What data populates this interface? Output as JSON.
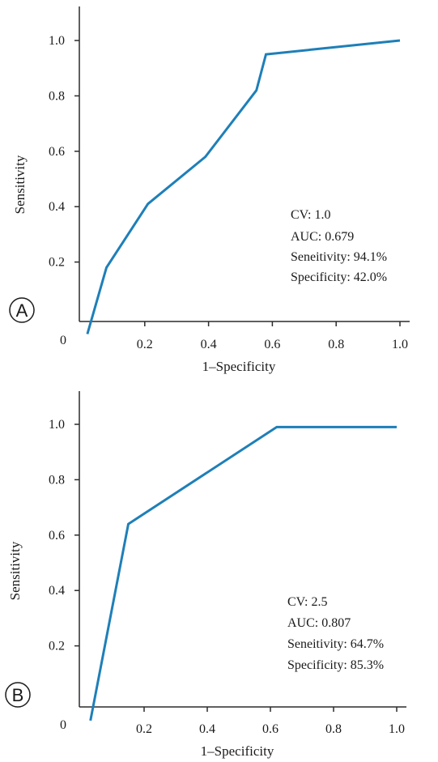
{
  "chart_data": [
    {
      "panel": "A",
      "type": "line",
      "xlabel": "1–Specificity",
      "ylabel": "Sensitivity",
      "origin_label": "0",
      "xlim": [
        0,
        1.0
      ],
      "ylim": [
        0,
        1.1
      ],
      "x_ticks": [
        "0.2",
        "0.4",
        "0.6",
        "0.8",
        "1.0"
      ],
      "x_tick_values": [
        0.2,
        0.4,
        0.6,
        0.8,
        1.0
      ],
      "y_ticks": [
        "0.2",
        "0.4",
        "0.6",
        "0.8",
        "1.0"
      ],
      "y_tick_values": [
        0.2,
        0.4,
        0.6,
        0.8,
        1.0
      ],
      "x": [
        0.02,
        0.08,
        0.21,
        0.39,
        0.55,
        0.58,
        1.0
      ],
      "y": [
        -0.06,
        0.18,
        0.41,
        0.58,
        0.82,
        0.95,
        1.0
      ],
      "annotations": [
        "CV: 1.0",
        "AUC: 0.679",
        "Seneitivity: 94.1%",
        "Specificity: 42.0%"
      ],
      "grid": false
    },
    {
      "panel": "B",
      "type": "line",
      "xlabel": "1–Specificity",
      "ylabel": "Sensitivity",
      "origin_label": "0",
      "xlim": [
        0,
        1.0
      ],
      "ylim": [
        0,
        1.1
      ],
      "x_ticks": [
        "0.2",
        "0.4",
        "0.6",
        "0.8",
        "1.0"
      ],
      "x_tick_values": [
        0.2,
        0.4,
        0.6,
        0.8,
        1.0
      ],
      "y_ticks": [
        "0.2",
        "0.4",
        "0.6",
        "0.8",
        "1.0"
      ],
      "y_tick_values": [
        0.2,
        0.4,
        0.6,
        0.8,
        1.0
      ],
      "x": [
        0.03,
        0.15,
        0.62,
        1.0
      ],
      "y": [
        -0.07,
        0.64,
        0.99,
        0.99
      ],
      "annotations": [
        "CV: 2.5",
        "AUC: 0.807",
        "Seneitivity: 64.7%",
        "Specificity: 85.3%"
      ],
      "grid": false
    }
  ],
  "line_color": "#1e7fb8"
}
